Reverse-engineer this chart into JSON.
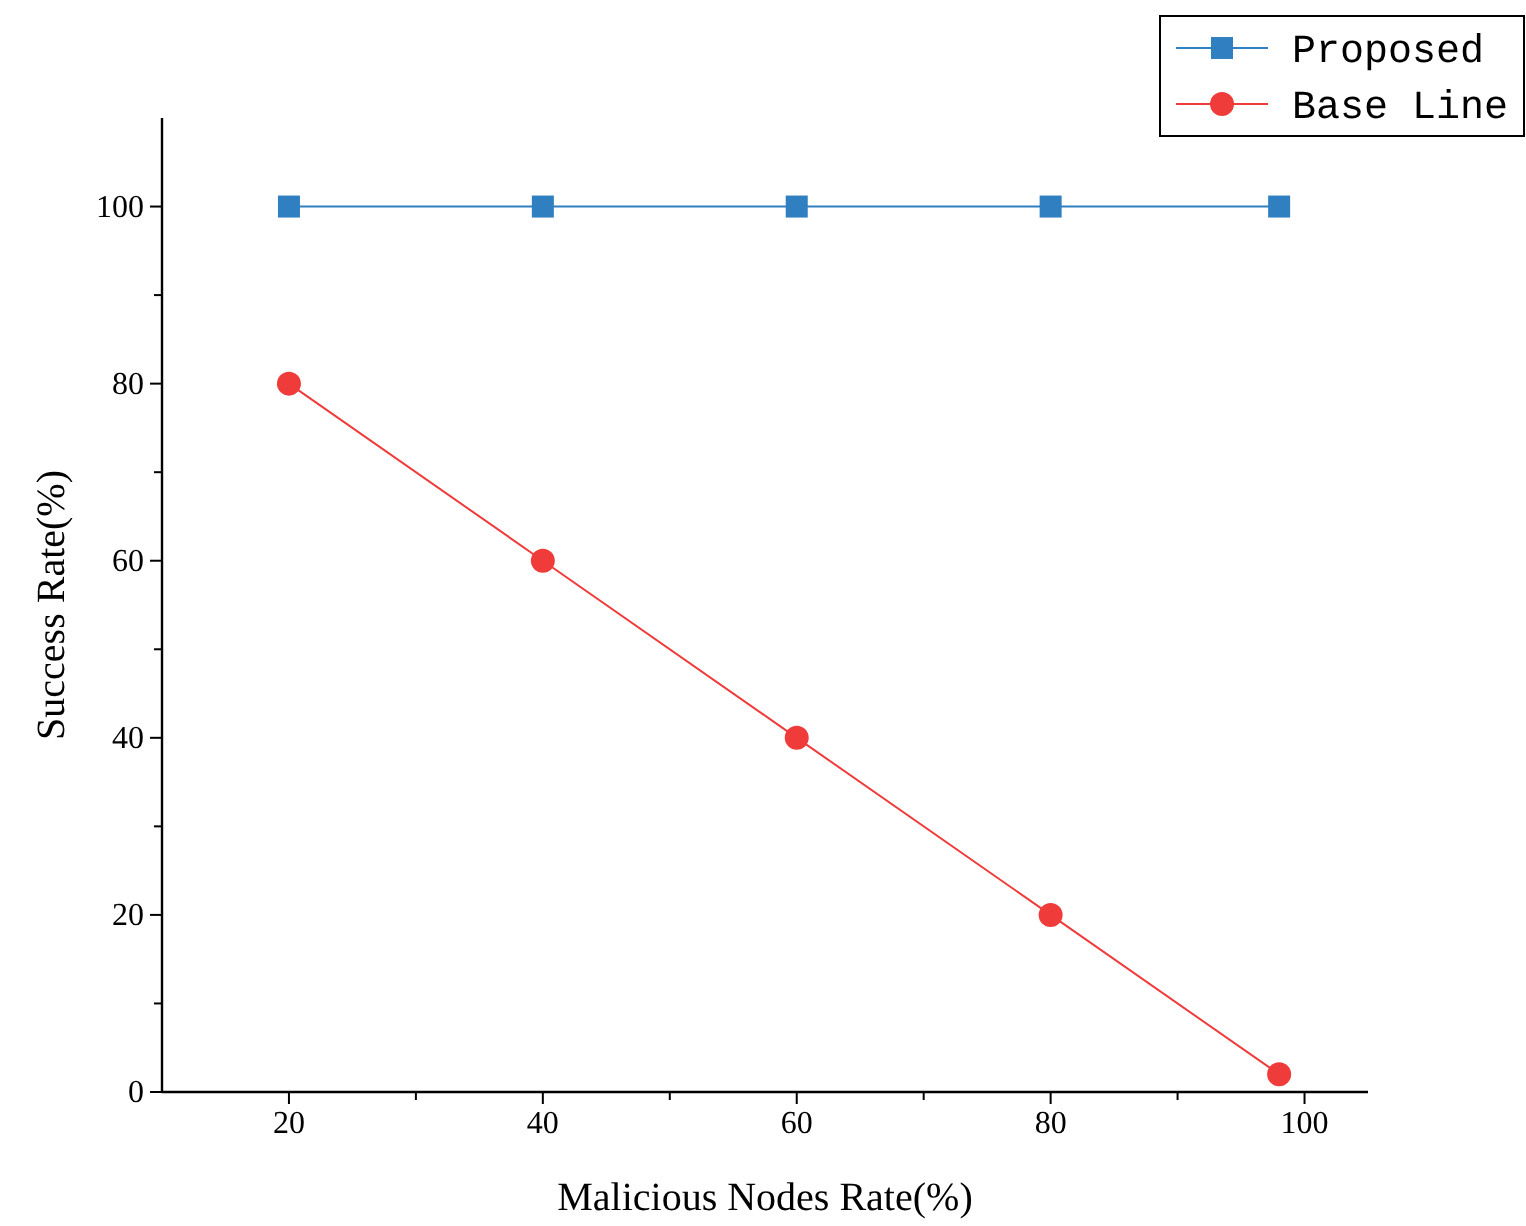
{
  "chart_data": {
    "type": "line",
    "xlabel": "Malicious Nodes Rate(%)",
    "ylabel": "Success Rate(%)",
    "xlim": [
      10,
      105
    ],
    "ylim": [
      0,
      110
    ],
    "xticks": [
      20,
      {
        "value": 30,
        "label": null
      },
      40,
      {
        "value": 50,
        "label": null
      },
      60,
      {
        "value": 70,
        "label": null
      },
      80,
      {
        "value": 90,
        "label": null
      },
      100
    ],
    "yticks": [
      0,
      {
        "value": 10,
        "label": null
      },
      20,
      {
        "value": 30,
        "label": null
      },
      40,
      {
        "value": 50,
        "label": null
      },
      60,
      {
        "value": 70,
        "label": null
      },
      80,
      {
        "value": 90,
        "label": null
      },
      100
    ],
    "legend": "top right",
    "grid": false,
    "series": [
      {
        "name": "Proposed",
        "color": "#2f7fc1",
        "marker": "square",
        "x": [
          20,
          40,
          60,
          80,
          98
        ],
        "values": [
          100,
          100,
          100,
          100,
          100
        ]
      },
      {
        "name": "Base Line",
        "color": "#f03b3b",
        "marker": "circle",
        "x": [
          20,
          40,
          60,
          80,
          98
        ],
        "values": [
          80,
          60,
          40,
          20,
          2
        ]
      }
    ]
  }
}
